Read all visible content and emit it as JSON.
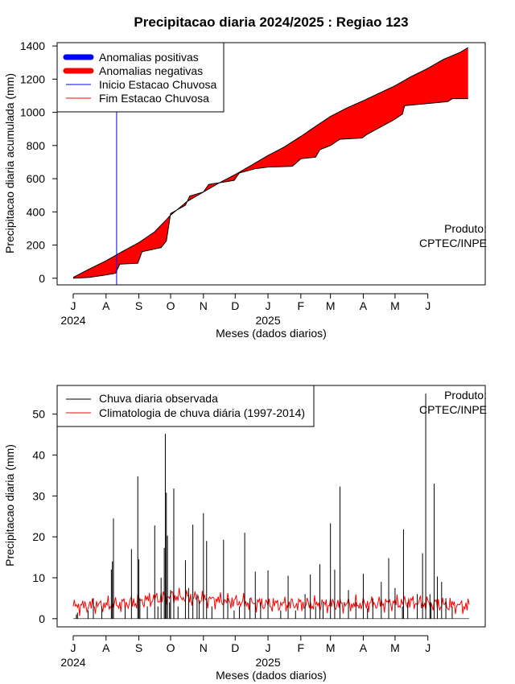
{
  "title": "Precipitacao diaria 2024/2025 : Regiao 123",
  "chart_data": [
    {
      "type": "area",
      "ylabel": "Precipitacao diaria acumulada (mm)",
      "xlabel": "Meses (dados diarios)",
      "x_start": "2024-07-01",
      "x_end": "2025-07-10",
      "x_ticks": [
        "J",
        "A",
        "S",
        "O",
        "N",
        "D",
        "J",
        "F",
        "M",
        "A",
        "M",
        "J"
      ],
      "x_tick_dates": [
        "2024-07-01",
        "2024-08-01",
        "2024-09-01",
        "2024-10-01",
        "2024-11-01",
        "2024-12-01",
        "2025-01-01",
        "2025-02-01",
        "2025-03-01",
        "2025-04-01",
        "2025-05-01",
        "2025-06-01"
      ],
      "year_labels": [
        {
          "text": "2024",
          "date": "2024-07-01"
        },
        {
          "text": "2025",
          "date": "2025-01-01"
        }
      ],
      "ylim": [
        -40,
        1420
      ],
      "y_ticks": [
        0,
        200,
        400,
        600,
        800,
        1000,
        1200,
        1400
      ],
      "legend": {
        "placement": "top-left",
        "entries": [
          "Anomalias positivas",
          "Anomalias negativas",
          "Inicio Estacao Chuvosa",
          "Fim Estacao Chuvosa"
        ],
        "colors": [
          "#0000ff",
          "#ff0000",
          "#0000ff",
          "#ff0000"
        ]
      },
      "onset_date": "2024-08-11",
      "annotation": [
        "Produto:",
        "CPTEC/INPE"
      ],
      "series": [
        {
          "name": "climatologia acumulada",
          "dates": [
            "2024-07-01",
            "2024-07-16",
            "2024-08-01",
            "2024-08-16",
            "2024-09-01",
            "2024-09-16",
            "2024-10-01",
            "2024-10-16",
            "2024-11-01",
            "2024-11-16",
            "2024-12-01",
            "2024-12-16",
            "2025-01-01",
            "2025-01-16",
            "2025-02-01",
            "2025-02-16",
            "2025-03-01",
            "2025-03-16",
            "2025-04-01",
            "2025-04-16",
            "2025-05-01",
            "2025-05-16",
            "2025-06-01",
            "2025-06-16",
            "2025-07-01",
            "2025-07-09"
          ],
          "values": [
            5,
            55,
            105,
            160,
            215,
            280,
            380,
            460,
            520,
            575,
            625,
            680,
            740,
            790,
            855,
            920,
            975,
            1025,
            1070,
            1115,
            1160,
            1215,
            1265,
            1320,
            1360,
            1390
          ]
        },
        {
          "name": "chuva acumulada observada",
          "dates": [
            "2024-07-01",
            "2024-07-16",
            "2024-08-01",
            "2024-08-10",
            "2024-08-14",
            "2024-08-31",
            "2024-09-04",
            "2024-09-22",
            "2024-09-27",
            "2024-10-01",
            "2024-10-15",
            "2024-10-19",
            "2024-11-01",
            "2024-11-06",
            "2024-11-30",
            "2024-12-05",
            "2024-12-20",
            "2025-01-01",
            "2025-01-24",
            "2025-02-01",
            "2025-02-15",
            "2025-02-19",
            "2025-03-01",
            "2025-03-10",
            "2025-03-31",
            "2025-04-04",
            "2025-04-30",
            "2025-05-08",
            "2025-05-10",
            "2025-06-20",
            "2025-06-24",
            "2025-07-09"
          ],
          "values": [
            0,
            5,
            20,
            30,
            85,
            90,
            160,
            185,
            225,
            390,
            440,
            495,
            520,
            565,
            590,
            635,
            660,
            670,
            675,
            720,
            730,
            775,
            800,
            838,
            845,
            865,
            955,
            990,
            1040,
            1065,
            1082,
            1082
          ]
        }
      ]
    },
    {
      "type": "bar",
      "ylabel": "Precipitacao diaria (mm)",
      "xlabel": "Meses (dados diarios)",
      "ylim": [
        -2,
        57
      ],
      "y_ticks": [
        0,
        10,
        20,
        30,
        40,
        50
      ],
      "legend": {
        "placement": "top-left",
        "entries": [
          "Chuva diaria observada",
          "Climatologia de chuva diária (1997-2014)"
        ],
        "colors": [
          "#000000",
          "#ff0000"
        ]
      },
      "annotation": [
        "Produto:",
        "CPTEC/INPE"
      ],
      "series": [
        {
          "name": "Chuva diaria observada",
          "dates": [
            "2024-07-04",
            "2024-07-05",
            "2024-07-15",
            "2024-07-20",
            "2024-07-28",
            "2024-08-06",
            "2024-08-07",
            "2024-08-08",
            "2024-08-19",
            "2024-08-25",
            "2024-08-31",
            "2024-09-01",
            "2024-09-02",
            "2024-09-09",
            "2024-09-16",
            "2024-09-19",
            "2024-09-22",
            "2024-09-25",
            "2024-09-26",
            "2024-09-27",
            "2024-09-28",
            "2024-09-30",
            "2024-10-01",
            "2024-10-04",
            "2024-10-08",
            "2024-10-15",
            "2024-10-18",
            "2024-10-22",
            "2024-10-26",
            "2024-10-28",
            "2024-11-01",
            "2024-11-04",
            "2024-11-09",
            "2024-11-20",
            "2024-11-24",
            "2024-11-30",
            "2024-12-05",
            "2024-12-10",
            "2024-12-15",
            "2024-12-20",
            "2024-12-25",
            "2025-01-01",
            "2025-01-13",
            "2025-01-20",
            "2025-01-27",
            "2025-02-05",
            "2025-02-10",
            "2025-02-15",
            "2025-02-19",
            "2025-02-22",
            "2025-03-01",
            "2025-03-05",
            "2025-03-10",
            "2025-03-18",
            "2025-03-25",
            "2025-04-01",
            "2025-04-05",
            "2025-04-10",
            "2025-04-18",
            "2025-04-25",
            "2025-05-01",
            "2025-05-08",
            "2025-05-09",
            "2025-05-13",
            "2025-05-22",
            "2025-05-27",
            "2025-05-30",
            "2025-06-03",
            "2025-06-04",
            "2025-06-07",
            "2025-06-10",
            "2025-06-14",
            "2025-06-18",
            "2025-06-24"
          ],
          "values": [
            1,
            1.5,
            2,
            5,
            3,
            12,
            14,
            24.5,
            3,
            17,
            34.8,
            14.5,
            5,
            3,
            22.8,
            3,
            10,
            17.3,
            45.2,
            30.8,
            20.3,
            4,
            7,
            31.8,
            3,
            14.3,
            7.5,
            23,
            6,
            4.5,
            25.8,
            19,
            3,
            19.3,
            5,
            2,
            3,
            21,
            5,
            11.5,
            4,
            11.8,
            2,
            10.5,
            2,
            6,
            10.8,
            3,
            13.3,
            4,
            23.3,
            12,
            32.3,
            7,
            4,
            11,
            2.5,
            5,
            9,
            14.8,
            7.5,
            3,
            21.8,
            4,
            6,
            16,
            55,
            6,
            4,
            33,
            10.3,
            9,
            5,
            3
          ]
        },
        {
          "name": "Climatologia de chuva diária (1997-2014)",
          "dates": [
            "2024-07-01",
            "2024-08-15",
            "2024-10-01",
            "2024-11-15",
            "2025-01-01",
            "2025-02-15",
            "2025-04-01",
            "2025-05-15",
            "2025-07-10"
          ],
          "values": [
            3,
            3.5,
            5.5,
            4.5,
            3.5,
            3.5,
            3.5,
            4,
            3
          ]
        }
      ]
    }
  ]
}
